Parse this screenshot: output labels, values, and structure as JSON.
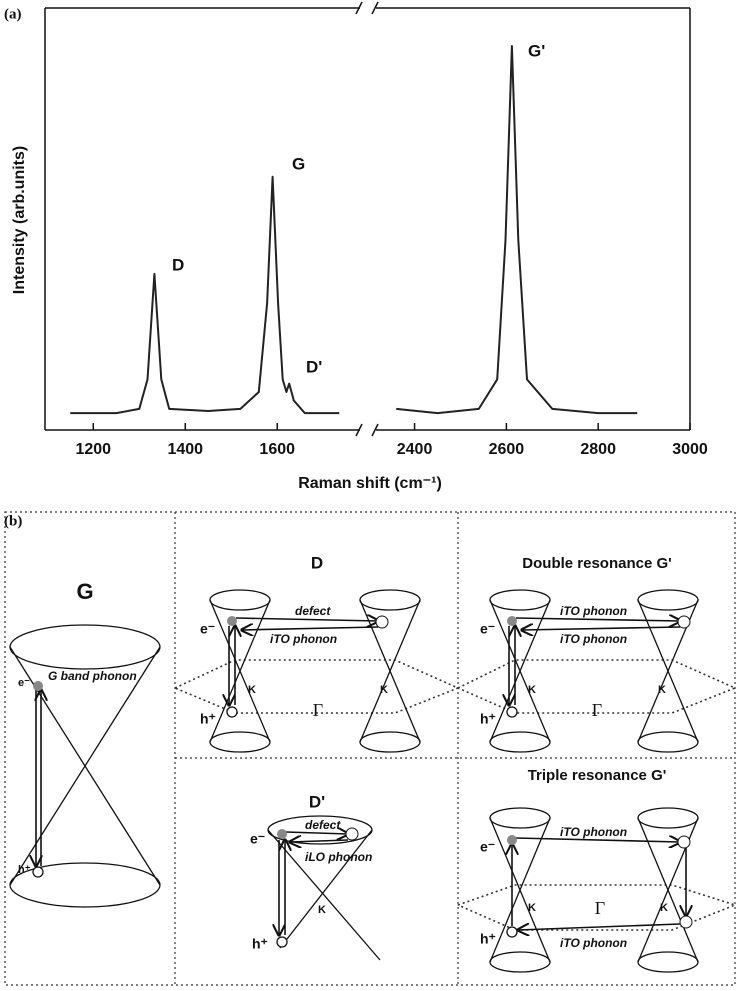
{
  "chart_data": {
    "type": "line",
    "panel_label": "(a)",
    "y_label": "Intensity (arb.units)",
    "x_label": "Raman shift (cm⁻¹)",
    "ylim": [
      0,
      100
    ],
    "x_segments": [
      {
        "xlim": [
          1095,
          1780
        ],
        "xticks": [
          1200,
          1400,
          1600
        ]
      },
      {
        "xlim": [
          2316,
          3000
        ],
        "xticks": [
          2400,
          2600,
          2800,
          3000
        ]
      }
    ],
    "annotations": [
      "D",
      "G",
      "D'",
      "G'"
    ],
    "series": [
      {
        "color": "#222",
        "x": [
          1150,
          1250,
          1300,
          1318,
          1333,
          1348,
          1365,
          1450,
          1520,
          1560,
          1578,
          1590,
          1602,
          1612,
          1620,
          1626,
          1636,
          1660,
          1735
        ],
        "values": [
          4,
          4,
          5,
          12,
          37,
          12,
          5,
          4.5,
          5,
          9,
          30,
          60,
          30,
          12,
          9,
          11,
          7,
          4,
          4
        ]
      },
      {
        "color": "#222",
        "x": [
          2360,
          2450,
          2540,
          2580,
          2598,
          2612,
          2626,
          2645,
          2700,
          2800,
          2885
        ],
        "values": [
          5,
          4,
          5,
          12,
          45,
          91,
          45,
          12,
          5,
          4,
          4
        ]
      }
    ]
  },
  "panel_b": {
    "label": "(b)",
    "cell_g": {
      "title": "G",
      "phonon": "G  band phonon",
      "e": "e⁻",
      "h": "h⁺"
    },
    "cell_d": {
      "title": "D",
      "defect": "defect",
      "phonon": "iTO phonon",
      "e": "e⁻",
      "h": "h⁺",
      "k1": "K",
      "k2": "K",
      "gamma": "Γ"
    },
    "cell_double": {
      "title": "Double resonance G'",
      "phonon1": "iTO phonon",
      "phonon2": "iTO phonon",
      "e": "e⁻",
      "h": "h⁺",
      "k1": "K",
      "k2": "K",
      "gamma": "Γ"
    },
    "cell_dprime": {
      "title": "D'",
      "defect": "defect",
      "phonon": "iLO phonon",
      "e": "e⁻",
      "h": "h⁺",
      "k": "K"
    },
    "cell_triple": {
      "title": "Triple resonance G'",
      "phonon1": "iTO phonon",
      "phonon2": "iTO phonon",
      "e": "e⁻",
      "h": "h⁺",
      "k1": "K",
      "k2": "K",
      "gamma": "Γ"
    }
  }
}
